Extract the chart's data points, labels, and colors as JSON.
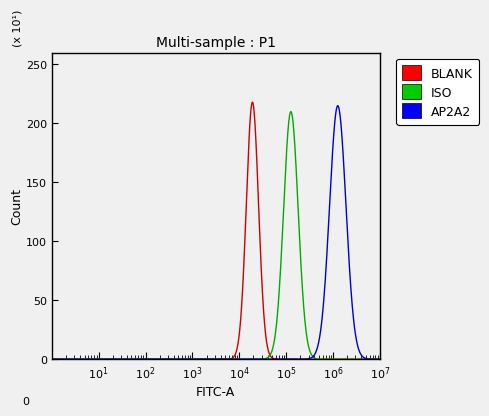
{
  "title": "Multi-sample : P1",
  "xlabel": "FITC-A",
  "ylabel": "Count",
  "ylabel_multiplier": "(x 10¹)",
  "xlim_log": [
    0,
    7
  ],
  "ylim": [
    0,
    260
  ],
  "yticks": [
    0,
    50,
    100,
    150,
    200,
    250
  ],
  "curves": [
    {
      "label": "BLANK",
      "color": "#cc0000",
      "peak_log": 4.28,
      "peak_y": 218,
      "sigma": 0.13
    },
    {
      "label": "ISO",
      "color": "#00aa00",
      "peak_log": 5.1,
      "peak_y": 210,
      "sigma": 0.155
    },
    {
      "label": "AP2A2",
      "color": "#0000cc",
      "peak_log": 6.1,
      "peak_y": 215,
      "sigma": 0.175
    }
  ],
  "legend_colors": [
    "#ff0000",
    "#00cc00",
    "#0000ff"
  ],
  "legend_labels": [
    "BLANK",
    "ISO",
    "AP2A2"
  ],
  "background_color": "#f0f0f0",
  "plot_bg_color": "#f0f0f0",
  "title_fontsize": 10,
  "label_fontsize": 9,
  "tick_fontsize": 8,
  "legend_fontsize": 9
}
